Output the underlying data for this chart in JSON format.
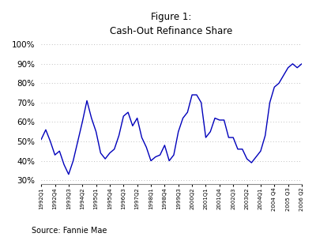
{
  "title_line1": "Figure 1:",
  "title_line2": "Cash-Out Refinance Share",
  "source": "Source: Fannie Mae",
  "line_color": "#0000bb",
  "background_color": "#ffffff",
  "grid_color": "#aaaaaa",
  "ylim": [
    0.28,
    1.02
  ],
  "yticks": [
    0.3,
    0.4,
    0.5,
    0.6,
    0.7,
    0.8,
    0.9,
    1.0
  ],
  "xlabel_fontsize": 5.0,
  "ytick_fontsize": 7.5,
  "title_fontsize": 8.5,
  "source_fontsize": 7.0,
  "x_labels": [
    "1992Q1",
    "1992Q4",
    "1993Q3",
    "1994Q2",
    "1995Q1",
    "1995Q4",
    "1996Q3",
    "1997Q2",
    "1998Q1",
    "1998Q4",
    "1999Q3",
    "2000Q2",
    "2001Q1",
    "2001Q4",
    "2002Q3",
    "2003Q2",
    "2004Q1",
    "2004 Q4",
    "2005 Q3",
    "2006 Q2"
  ],
  "vals": [
    0.51,
    0.56,
    0.5,
    0.43,
    0.45,
    0.38,
    0.33,
    0.4,
    0.5,
    0.6,
    0.71,
    0.62,
    0.55,
    0.44,
    0.41,
    0.44,
    0.46,
    0.53,
    0.63,
    0.65,
    0.58,
    0.62,
    0.52,
    0.47,
    0.4,
    0.42,
    0.43,
    0.48,
    0.4,
    0.43,
    0.55,
    0.62,
    0.65,
    0.74,
    0.74,
    0.7,
    0.52,
    0.55,
    0.62,
    0.61,
    0.61,
    0.52,
    0.52,
    0.46,
    0.46,
    0.41,
    0.39,
    0.42,
    0.45,
    0.53,
    0.7,
    0.78,
    0.8,
    0.84,
    0.88,
    0.9,
    0.88,
    0.9
  ]
}
